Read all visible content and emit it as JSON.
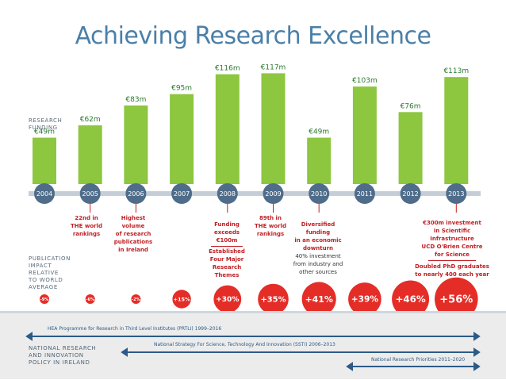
{
  "title": "Achieving Research Excellence",
  "labels": {
    "research_funding": "RESEARCH FUNDING",
    "publication_impact": "PUBLICATION IMPACT RELATIVE TO WORLD AVERAGE",
    "policy": "NATIONAL RESEARCH AND INNOVATION POLICY IN IRELAND"
  },
  "chart_data": {
    "type": "bar",
    "title": "Achieving Research Excellence",
    "ylabel": "Research Funding",
    "categories": [
      "2004",
      "2005",
      "2006",
      "2007",
      "2008",
      "2009",
      "2010",
      "2011",
      "2012",
      "2013"
    ],
    "values": [
      49,
      62,
      83,
      95,
      116,
      117,
      49,
      103,
      76,
      113
    ],
    "value_labels": [
      "€49m",
      "€62m",
      "€83m",
      "€95m",
      "€116m",
      "€117m",
      "€49m",
      "€103m",
      "€76m",
      "€113m"
    ],
    "ylim": [
      0,
      120
    ],
    "publication_impact": {
      "values": [
        -9,
        -6,
        -2,
        15,
        30,
        35,
        41,
        39,
        46,
        56
      ],
      "labels": [
        "-9%",
        "-6%",
        "-2%",
        "+15%",
        "+30%",
        "+35%",
        "+41%",
        "+39%",
        "+46%",
        "+56%"
      ]
    }
  },
  "colors": {
    "bar": "#8dc63f",
    "axis_circle": "#4f6d8a",
    "axis_line": "#c5ced6",
    "impact": "#e52d27",
    "title": "#4b7fa8",
    "note_red": "#c01e22",
    "policy_arrow": "#2c5b86"
  },
  "notes": {
    "n2005": [
      "22nd in",
      "THE world",
      "rankings"
    ],
    "n2006": [
      "Highest",
      "volume",
      "of research",
      "publications",
      "in Ireland"
    ],
    "n2008a": [
      "Funding",
      "exceeds",
      "€100m"
    ],
    "n2008b": [
      "Established",
      "Four Major",
      "Research",
      "Themes"
    ],
    "n2009": [
      "89th in",
      "THE world",
      "rankings"
    ],
    "n2010a": [
      "Diversified funding",
      "in an economic",
      "downturn"
    ],
    "n2010b": [
      "40% investment",
      "from industry and",
      "other sources"
    ],
    "n2013a": [
      "€300m investment",
      "in Scientific",
      "Infrastructure",
      "UCD O'Brien Centre",
      "for Science"
    ],
    "n2013b": [
      "Doubled PhD graduates",
      "to nearly 400 each year"
    ]
  },
  "policies": [
    "HEA Programme for Research in Third Level Institutes (PRTLI) 1999–2016",
    "National Strategy For Science, Technology And Innovation (SSTI) 2006–2013",
    "National Research Priorities 2011–2020"
  ]
}
